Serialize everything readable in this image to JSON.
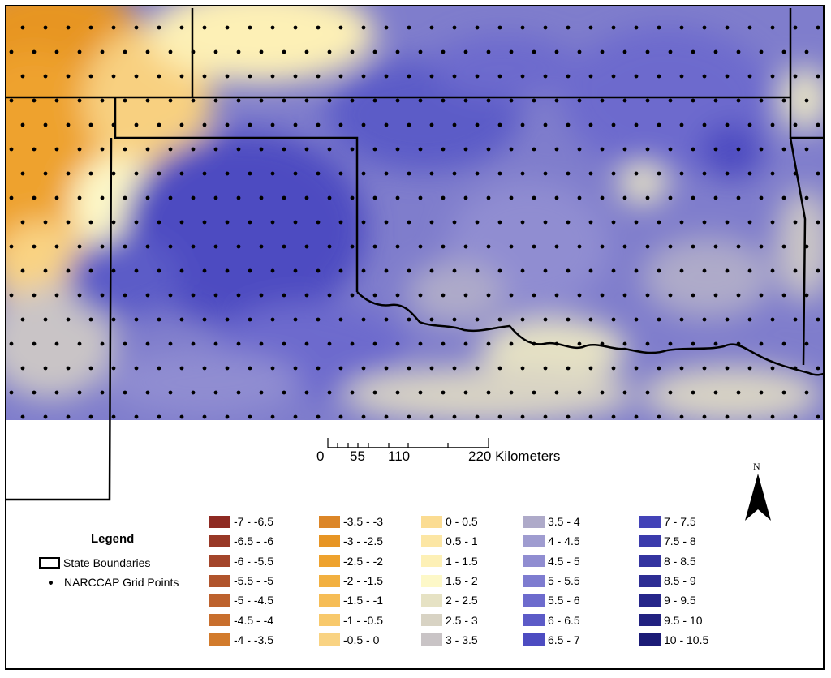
{
  "legend": {
    "title": "Legend",
    "state_boundaries_label": "State Boundaries",
    "grid_points_label": "NARCCAP Grid Points"
  },
  "scale_bar": {
    "labels": [
      "0",
      "55",
      "110",
      "220 Kilometers"
    ]
  },
  "north_arrow": {
    "label": "N"
  },
  "color_classes": [
    [
      {
        "label": "-7 - -6.5",
        "color": "#8e2a22"
      },
      {
        "label": "-6.5 - -6",
        "color": "#983826"
      },
      {
        "label": "-6 - -5.5",
        "color": "#a3452a"
      },
      {
        "label": "-5.5 - -5",
        "color": "#b0542c"
      },
      {
        "label": "-5 - -4.5",
        "color": "#bd622e"
      },
      {
        "label": "-4.5 - -4",
        "color": "#c86f2e"
      },
      {
        "label": "-4 - -3.5",
        "color": "#d27b2c"
      }
    ],
    [
      {
        "label": "-3.5 - -3",
        "color": "#dc8628"
      },
      {
        "label": "-3 - -2.5",
        "color": "#e79524"
      },
      {
        "label": "-2.5 - -2",
        "color": "#eea22e"
      },
      {
        "label": "-2 - -1.5",
        "color": "#f2b040"
      },
      {
        "label": "-1.5 - -1",
        "color": "#f6bd56"
      },
      {
        "label": "-1 - -0.5",
        "color": "#f8c96c"
      },
      {
        "label": "-0.5 - 0",
        "color": "#f9d383"
      }
    ],
    [
      {
        "label": "0 - 0.5",
        "color": "#fbdc92"
      },
      {
        "label": "0.5 - 1",
        "color": "#fce6a4"
      },
      {
        "label": "1 - 1.5",
        "color": "#fdf0b6"
      },
      {
        "label": "1.5 - 2",
        "color": "#fdf8c8"
      },
      {
        "label": "2 - 2.5",
        "color": "#e6e2c4"
      },
      {
        "label": "2.5 - 3",
        "color": "#d8d3c4"
      },
      {
        "label": "3 - 3.5",
        "color": "#c9c4c6"
      }
    ],
    [
      {
        "label": "3.5 - 4",
        "color": "#aeaac9"
      },
      {
        "label": "4 - 4.5",
        "color": "#9f9cd0"
      },
      {
        "label": "4.5 - 5",
        "color": "#908dd1"
      },
      {
        "label": "5 - 5.5",
        "color": "#7e7cd0"
      },
      {
        "label": "5.5 - 6",
        "color": "#6d6bcd"
      },
      {
        "label": "6 - 6.5",
        "color": "#5c5bc7"
      },
      {
        "label": "6.5 - 7",
        "color": "#4d4cc1"
      }
    ],
    [
      {
        "label": "7 - 7.5",
        "color": "#4343b8"
      },
      {
        "label": "7.5 - 8",
        "color": "#3b3bac"
      },
      {
        "label": "8 - 8.5",
        "color": "#3434a0"
      },
      {
        "label": "8.5 - 9",
        "color": "#2d2d94"
      },
      {
        "label": "9 - 9.5",
        "color": "#26268a"
      },
      {
        "label": "9.5 - 10",
        "color": "#212180"
      },
      {
        "label": "10 - 10.5",
        "color": "#1b1b76"
      }
    ]
  ]
}
